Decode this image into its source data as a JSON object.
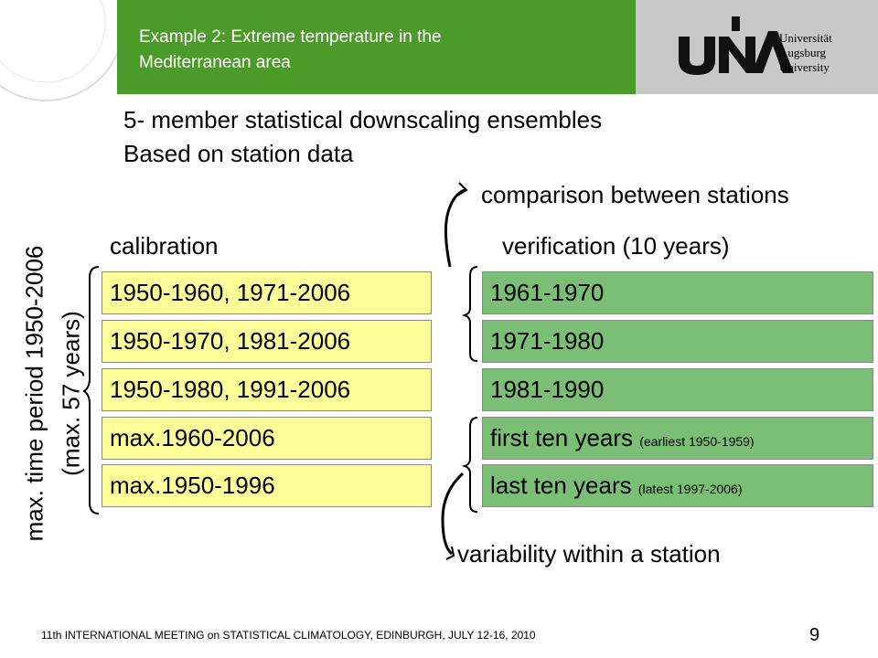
{
  "header": {
    "title_lines": [
      "Example 2: Extreme temperature in the",
      "Mediterranean area"
    ],
    "logo_lines": [
      "Universität",
      "Augsburg",
      "University"
    ]
  },
  "subtitle_lines": [
    "5- member statistical downscaling ensembles",
    "Based on station data"
  ],
  "annotations": {
    "comparison": "comparison between stations",
    "variability": "variability within a station"
  },
  "calibration": {
    "heading": "calibration",
    "rows": [
      "1950-1960, 1971-2006",
      "1950-1970, 1981-2006",
      "1950-1980, 1991-2006",
      "max.1960-2006",
      "max.1950-1996"
    ]
  },
  "verification": {
    "heading": "verification (10 years)",
    "rows": [
      {
        "text": "1961-1970"
      },
      {
        "text": "1971-1980"
      },
      {
        "text": "1981-1990"
      },
      {
        "text": "first ten years",
        "note": "(earliest 1950-1959)"
      },
      {
        "text": "last ten years",
        "note": "(latest 1997-2006)"
      }
    ]
  },
  "period_label": {
    "lines": [
      "max. time period 1950-2006",
      "(max. 57 years)"
    ]
  },
  "footer": {
    "text": "11th INTERNATIONAL MEETING on STATISTICAL CLIMATOLOGY, EDINBURGH, JULY 12-16, 2010",
    "page": "9"
  }
}
